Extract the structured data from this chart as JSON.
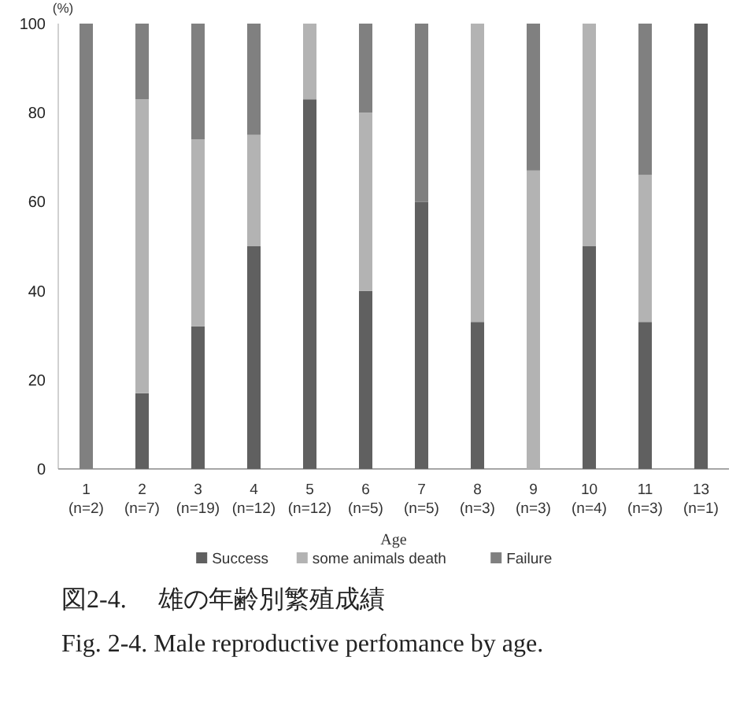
{
  "chart_data": {
    "type": "bar",
    "stacked": true,
    "categories": [
      "1\n(n=2)",
      "2\n(n=7)",
      "3\n(n=19)",
      "4\n(n=12)",
      "5\n(n=12)",
      "6\n(n=5)",
      "7\n(n=5)",
      "8\n(n=3)",
      "9\n(n=3)",
      "10\n(n=4)",
      "11\n(n=3)",
      "13\n(n=1)"
    ],
    "series": [
      {
        "name": "Success",
        "color": "#606060",
        "values": [
          0,
          17,
          32,
          50,
          83,
          40,
          60,
          33,
          0,
          50,
          33,
          100
        ]
      },
      {
        "name": "some animals death",
        "color": "#b3b3b3",
        "values": [
          0,
          66,
          42,
          25,
          17,
          40,
          0,
          67,
          67,
          50,
          33,
          0
        ]
      },
      {
        "name": "Failure",
        "color": "#808080",
        "values": [
          100,
          17,
          26,
          25,
          0,
          20,
          40,
          0,
          33,
          0,
          34,
          0
        ]
      }
    ],
    "ylim": [
      0,
      100
    ],
    "yticks": [
      0,
      20,
      40,
      60,
      80,
      100
    ],
    "ylabel": "(%)",
    "xlabel": "Age",
    "grid": false,
    "legend": "bottom",
    "annotations": [
      "図2-4.　 雄の年齢別繁殖成績",
      "Fig. 2-4. Male reproductive perfomance by age."
    ]
  }
}
